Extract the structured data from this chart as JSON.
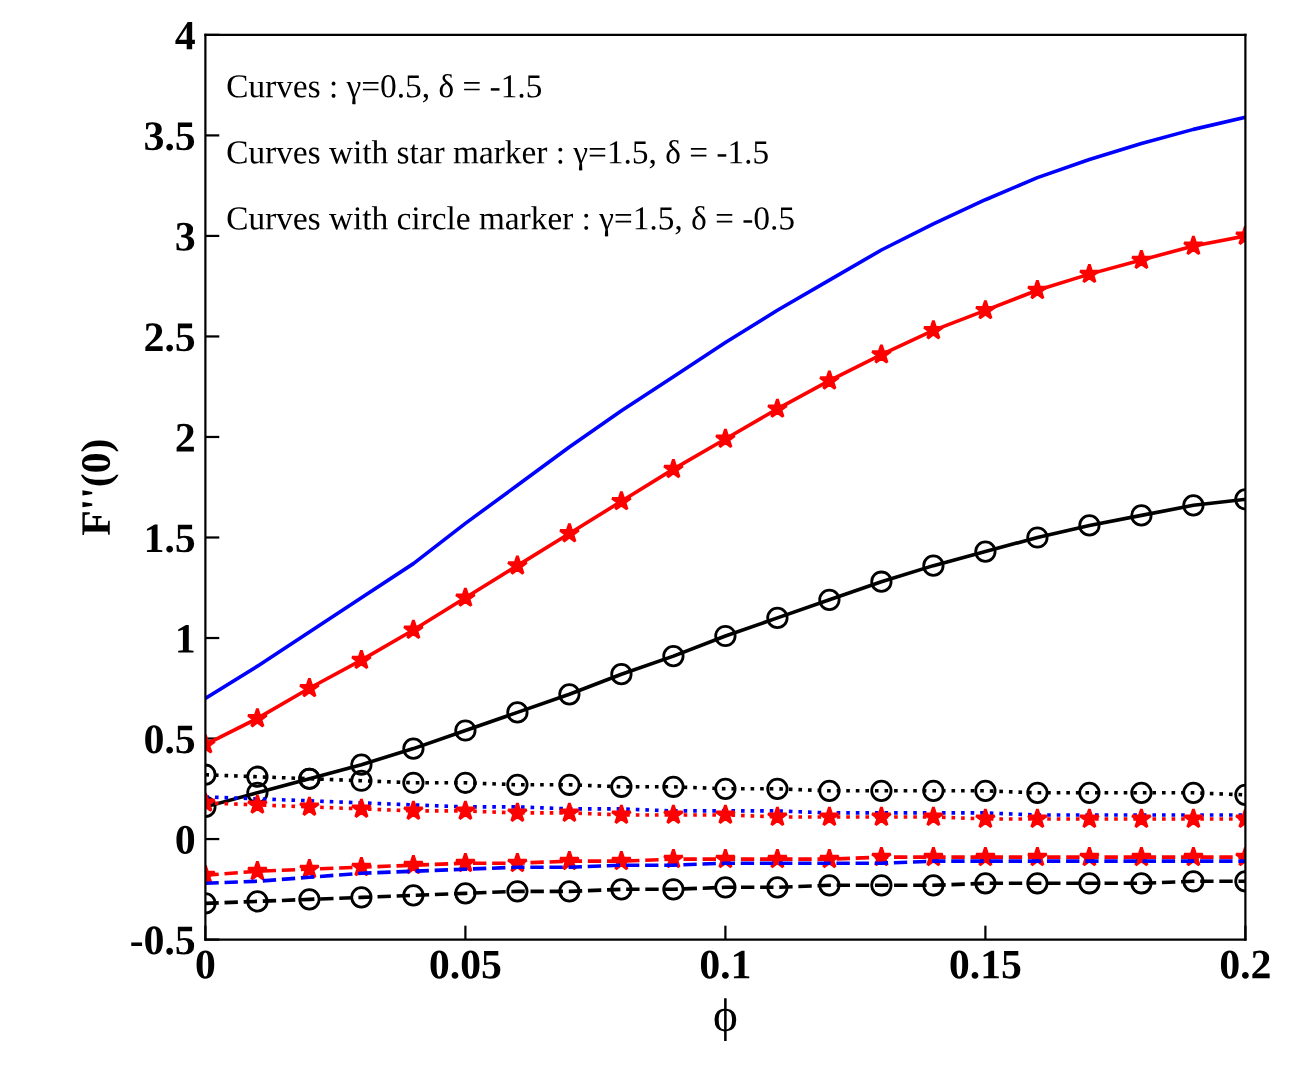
{
  "chart_data": {
    "type": "line",
    "xlabel": "ϕ",
    "ylabel": "F''(0)",
    "x": [
      0,
      0.01,
      0.02,
      0.03,
      0.04,
      0.05,
      0.06,
      0.07,
      0.08,
      0.09,
      0.1,
      0.11,
      0.12,
      0.13,
      0.14,
      0.15,
      0.16,
      0.17,
      0.18,
      0.19,
      0.2
    ],
    "xlim": [
      0,
      0.2
    ],
    "xticks": [
      0,
      0.05,
      0.1,
      0.15,
      0.2
    ],
    "ylim": [
      -0.5,
      4
    ],
    "yticks": [
      -0.5,
      0,
      0.5,
      1,
      1.5,
      2,
      2.5,
      3,
      3.5,
      4
    ],
    "grid": false,
    "legend": false,
    "annotations": [
      "Curves : γ=0.5, δ = -1.5",
      "Curves with star marker : γ=1.5, δ = -1.5",
      "Curves with circle marker : γ=1.5, δ = -0.5"
    ],
    "series": [
      {
        "color": "#0000ff",
        "line_style": "solid",
        "marker": "none",
        "values": [
          0.7,
          0.86,
          1.03,
          1.2,
          1.37,
          1.57,
          1.76,
          1.95,
          2.13,
          2.3,
          2.47,
          2.63,
          2.78,
          2.93,
          3.06,
          3.18,
          3.29,
          3.38,
          3.46,
          3.53,
          3.59
        ]
      },
      {
        "color": "#ff0000",
        "line_style": "solid",
        "marker": "star",
        "values": [
          0.47,
          0.6,
          0.75,
          0.89,
          1.04,
          1.2,
          1.36,
          1.52,
          1.68,
          1.84,
          1.99,
          2.14,
          2.28,
          2.41,
          2.53,
          2.63,
          2.73,
          2.81,
          2.88,
          2.95,
          3.0
        ]
      },
      {
        "color": "#000000",
        "line_style": "solid",
        "marker": "circle",
        "values": [
          0.16,
          0.23,
          0.3,
          0.37,
          0.45,
          0.54,
          0.63,
          0.72,
          0.82,
          0.91,
          1.01,
          1.1,
          1.19,
          1.28,
          1.36,
          1.43,
          1.5,
          1.56,
          1.61,
          1.66,
          1.69
        ]
      },
      {
        "color": "#000000",
        "line_style": "dotted",
        "marker": "circle",
        "values": [
          0.32,
          0.31,
          0.3,
          0.29,
          0.28,
          0.28,
          0.27,
          0.27,
          0.26,
          0.26,
          0.25,
          0.25,
          0.24,
          0.24,
          0.24,
          0.24,
          0.23,
          0.23,
          0.23,
          0.23,
          0.22
        ]
      },
      {
        "color": "#0000ff",
        "line_style": "dotted",
        "marker": "none",
        "values": [
          0.21,
          0.2,
          0.19,
          0.18,
          0.17,
          0.16,
          0.16,
          0.15,
          0.15,
          0.14,
          0.14,
          0.14,
          0.13,
          0.13,
          0.13,
          0.13,
          0.12,
          0.12,
          0.12,
          0.12,
          0.12
        ]
      },
      {
        "color": "#ff0000",
        "line_style": "dotted",
        "marker": "star",
        "values": [
          0.18,
          0.17,
          0.16,
          0.15,
          0.14,
          0.14,
          0.13,
          0.13,
          0.12,
          0.12,
          0.12,
          0.11,
          0.11,
          0.11,
          0.11,
          0.1,
          0.1,
          0.1,
          0.1,
          0.1,
          0.1
        ]
      },
      {
        "color": "#ff0000",
        "line_style": "dashed",
        "marker": "star",
        "values": [
          -0.18,
          -0.16,
          -0.15,
          -0.14,
          -0.13,
          -0.12,
          -0.12,
          -0.11,
          -0.11,
          -0.1,
          -0.1,
          -0.1,
          -0.1,
          -0.09,
          -0.09,
          -0.09,
          -0.09,
          -0.09,
          -0.09,
          -0.09,
          -0.09
        ]
      },
      {
        "color": "#0000ff",
        "line_style": "dashed",
        "marker": "none",
        "values": [
          -0.22,
          -0.21,
          -0.19,
          -0.17,
          -0.16,
          -0.15,
          -0.14,
          -0.14,
          -0.13,
          -0.13,
          -0.12,
          -0.12,
          -0.12,
          -0.12,
          -0.11,
          -0.11,
          -0.11,
          -0.11,
          -0.11,
          -0.11,
          -0.11
        ]
      },
      {
        "color": "#000000",
        "line_style": "dashed",
        "marker": "circle",
        "values": [
          -0.32,
          -0.31,
          -0.3,
          -0.29,
          -0.28,
          -0.27,
          -0.26,
          -0.26,
          -0.25,
          -0.25,
          -0.24,
          -0.24,
          -0.23,
          -0.23,
          -0.23,
          -0.22,
          -0.22,
          -0.22,
          -0.22,
          -0.21,
          -0.21
        ]
      }
    ]
  }
}
